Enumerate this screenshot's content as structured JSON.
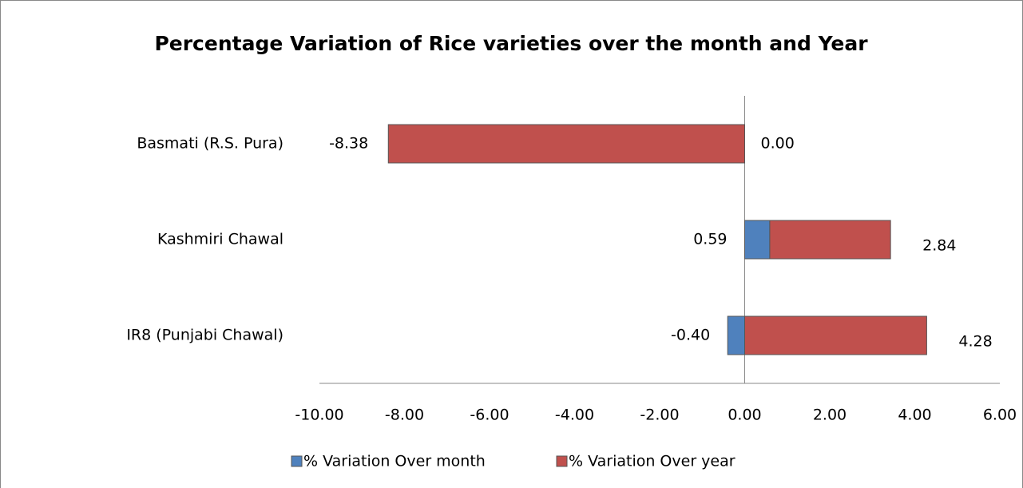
{
  "chart_data": {
    "type": "hbar_stacked",
    "title": "Percentage Variation of Rice varieties over the month and Year",
    "categories": [
      "Basmati (R.S. Pura)",
      "Kashmiri Chawal",
      "IR8 (Punjabi Chawal)"
    ],
    "series": [
      {
        "name": "% Variation Over month",
        "color": "#4f81bd",
        "values": [
          0,
          0.59,
          -0.4
        ],
        "value_labels": [
          "0.00",
          "0.59",
          "-0.40"
        ]
      },
      {
        "name": "% Variation Over year",
        "color": "#c0504d",
        "values": [
          -8.38,
          2.84,
          4.28
        ],
        "value_labels": [
          "-8.38",
          "2.84",
          "4.28"
        ]
      }
    ],
    "xlim": [
      -10,
      6
    ],
    "xticks": [
      {
        "value": -10,
        "label": "-10.00"
      },
      {
        "value": -8,
        "label": "-8.00"
      },
      {
        "value": -6,
        "label": "-6.00"
      },
      {
        "value": -4,
        "label": "-4.00"
      },
      {
        "value": -2,
        "label": "-2.00"
      },
      {
        "value": 0,
        "label": "0.00"
      },
      {
        "value": 2,
        "label": "2.00"
      },
      {
        "value": 4,
        "label": "4.00"
      },
      {
        "value": 6,
        "label": "6.00"
      }
    ],
    "legend": "bottom"
  }
}
